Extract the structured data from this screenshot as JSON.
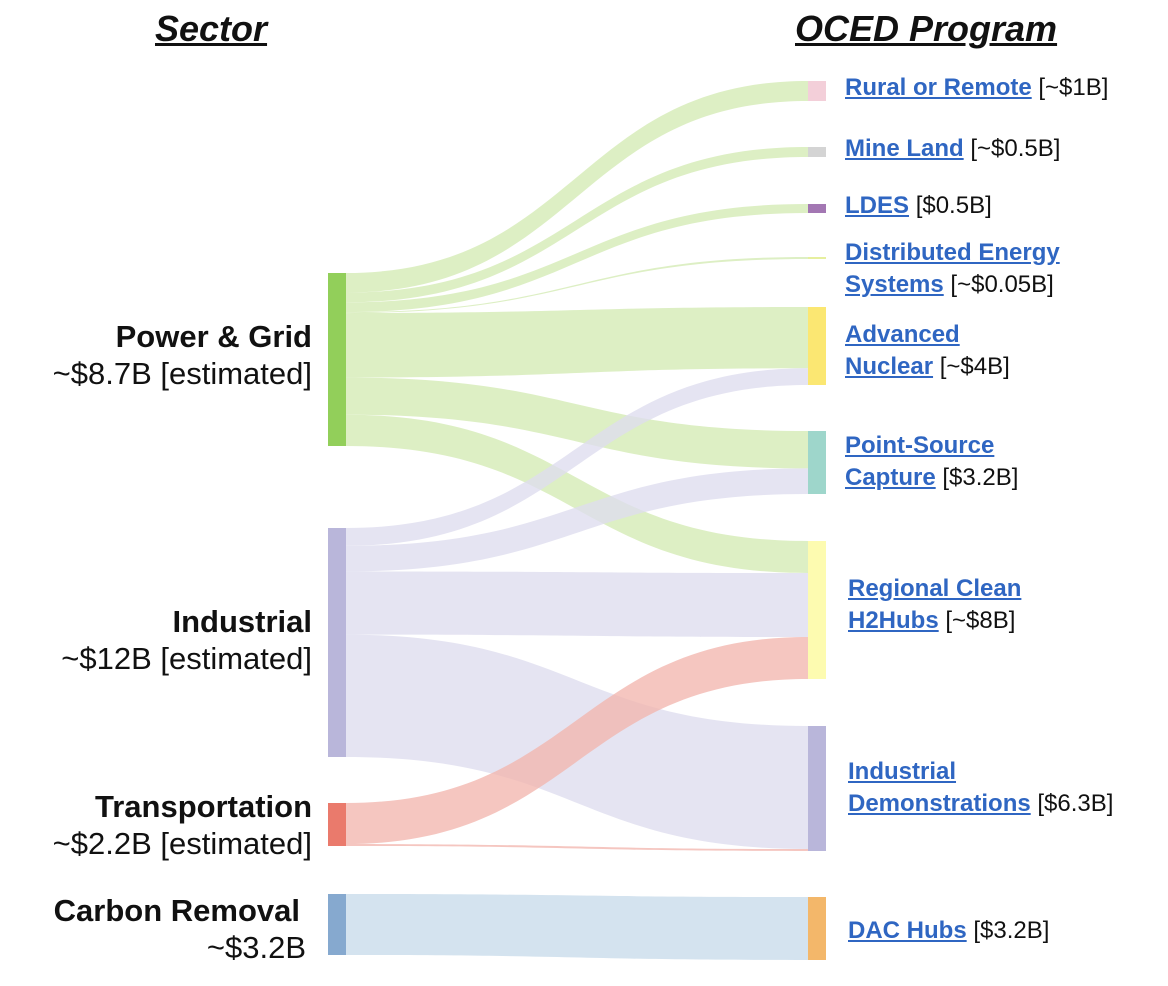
{
  "headers": {
    "left": "Sector",
    "right": "OCED Program"
  },
  "sectors": [
    {
      "id": "power",
      "name": "Power & Grid",
      "amount": "~$8.7B [estimated]",
      "color": "#92cf5a"
    },
    {
      "id": "industrial",
      "name": "Industrial",
      "amount": "~$12B [estimated]",
      "color": "#b9b6da"
    },
    {
      "id": "transport",
      "name": "Transportation",
      "amount": "~$2.2B [estimated]",
      "color": "#ea7a6c"
    },
    {
      "id": "cdr",
      "name": "Carbon Removal",
      "amount": "~$3.2B",
      "color": "#86a9cf"
    }
  ],
  "programs": [
    {
      "id": "rural",
      "lines": [
        "Rural or Remote"
      ],
      "amount": "[~$1B]",
      "color": "#f3cfd9"
    },
    {
      "id": "mine",
      "lines": [
        "Mine Land"
      ],
      "amount": "[~$0.5B]",
      "color": "#d4d4d4"
    },
    {
      "id": "ldes",
      "lines": [
        "LDES"
      ],
      "amount": "[$0.5B]",
      "color": "#a377b3"
    },
    {
      "id": "des",
      "lines": [
        "Distributed Energy",
        "Systems"
      ],
      "amount": "[~$0.05B]",
      "color": "#e6ef9e"
    },
    {
      "id": "nuclear",
      "lines": [
        "Advanced",
        "Nuclear"
      ],
      "amount": "[~$4B]",
      "color": "#fbe772"
    },
    {
      "id": "psc",
      "lines": [
        "Point-Source",
        "Capture"
      ],
      "amount": "[$3.2B]",
      "color": "#9ed6cb"
    },
    {
      "id": "h2",
      "lines": [
        "Regional Clean ",
        "H2Hubs"
      ],
      "amount": "[~$8B]",
      "color": "#fdfbb0"
    },
    {
      "id": "ind_demo",
      "lines": [
        "Industrial",
        "Demonstrations"
      ],
      "amount": "[$6.3B]",
      "color": "#b9b6da"
    },
    {
      "id": "dac",
      "lines": [
        "DAC Hubs"
      ],
      "amount": "[$3.2B]",
      "color": "#f3b76a"
    }
  ],
  "flow_colors": {
    "power": "#d4eab4",
    "industrial": "#dedcee",
    "transport": "#f2b6ae",
    "cdr": "#c8dbeb"
  },
  "flows": [
    {
      "from": "power",
      "to": "rural",
      "value": 1
    },
    {
      "from": "power",
      "to": "mine",
      "value": 0.5
    },
    {
      "from": "power",
      "to": "ldes",
      "value": 0.5
    },
    {
      "from": "power",
      "to": "des",
      "value": 0.05
    },
    {
      "from": "power",
      "to": "nuclear",
      "value": 3.3
    },
    {
      "from": "power",
      "to": "psc",
      "value": 1.9
    },
    {
      "from": "power",
      "to": "h2",
      "value": 1.6
    },
    {
      "from": "industrial",
      "to": "nuclear",
      "value": 0.9
    },
    {
      "from": "industrial",
      "to": "psc",
      "value": 1.3
    },
    {
      "from": "industrial",
      "to": "h2",
      "value": 3.2
    },
    {
      "from": "industrial",
      "to": "ind_demo",
      "value": 6.2
    },
    {
      "from": "transport",
      "to": "h2",
      "value": 2.1
    },
    {
      "from": "transport",
      "to": "ind_demo",
      "value": 0.1
    },
    {
      "from": "cdr",
      "to": "dac",
      "value": 3.2
    }
  ]
}
